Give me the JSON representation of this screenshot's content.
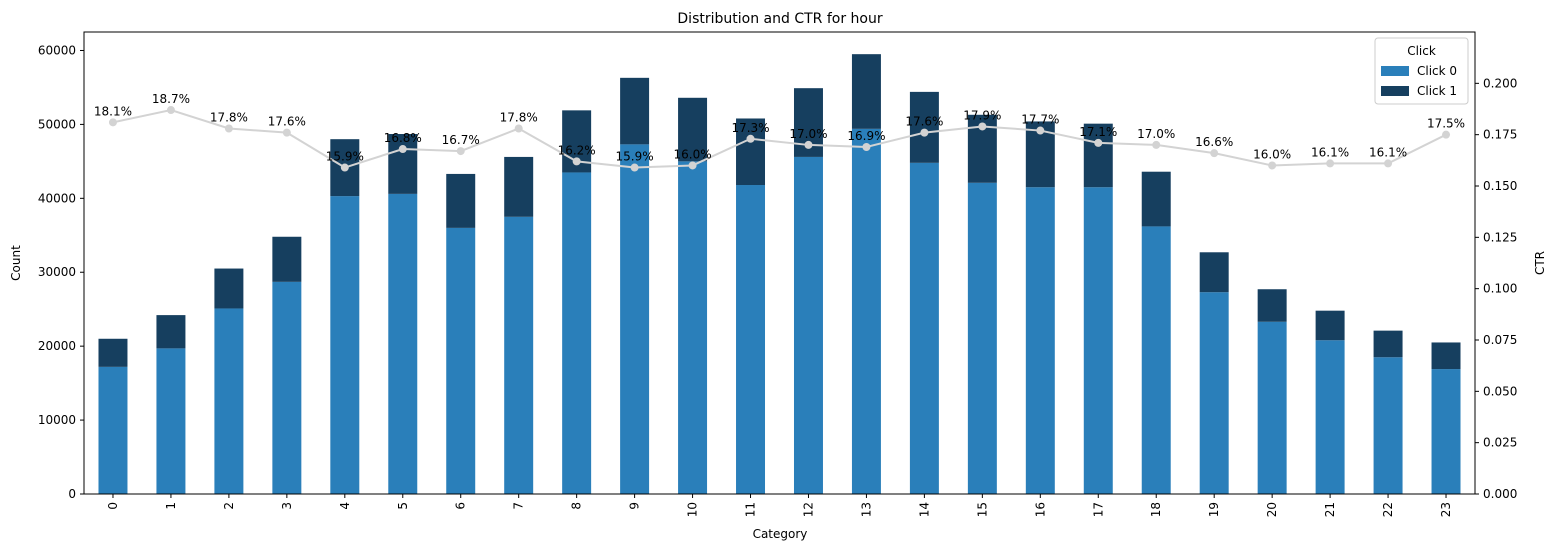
{
  "chart_data": {
    "type": "bar",
    "stacked": true,
    "title": "Distribution and CTR for hour",
    "xlabel": "Category",
    "ylabel": "Count",
    "y2label": "CTR",
    "ylim": [
      0,
      62500
    ],
    "y2lim": [
      0,
      0.225
    ],
    "yticks": [
      0,
      10000,
      20000,
      30000,
      40000,
      50000,
      60000
    ],
    "y2ticks": [
      0.0,
      0.025,
      0.05,
      0.075,
      0.1,
      0.125,
      0.15,
      0.175,
      0.2
    ],
    "categories": [
      "0",
      "1",
      "2",
      "3",
      "4",
      "5",
      "6",
      "7",
      "8",
      "9",
      "10",
      "11",
      "12",
      "13",
      "14",
      "15",
      "16",
      "17",
      "18",
      "19",
      "20",
      "21",
      "22",
      "23"
    ],
    "series": [
      {
        "name": "Click 0",
        "color": "#2a7fba",
        "values": [
          17200,
          19700,
          25100,
          28700,
          40300,
          40600,
          36000,
          37500,
          43500,
          47300,
          45000,
          41800,
          45600,
          49400,
          44800,
          42100,
          41500,
          41500,
          36200,
          27300,
          23300,
          20800,
          18500,
          16900
        ]
      },
      {
        "name": "Click 1",
        "color": "#163f5f",
        "values": [
          3800,
          4500,
          5400,
          6100,
          7700,
          8100,
          7300,
          8100,
          8400,
          9000,
          8600,
          9000,
          9300,
          10100,
          9600,
          9200,
          8900,
          8600,
          7400,
          5400,
          4400,
          4000,
          3600,
          3600
        ]
      }
    ],
    "ctr": {
      "name": "CTR",
      "color": "#d3d3d3",
      "values": [
        0.181,
        0.187,
        0.178,
        0.176,
        0.159,
        0.168,
        0.167,
        0.178,
        0.162,
        0.159,
        0.16,
        0.173,
        0.17,
        0.169,
        0.176,
        0.179,
        0.177,
        0.171,
        0.17,
        0.166,
        0.16,
        0.161,
        0.161,
        0.175
      ],
      "labels": [
        "18.1%",
        "18.7%",
        "17.8%",
        "17.6%",
        "15.9%",
        "16.8%",
        "16.7%",
        "17.8%",
        "16.2%",
        "15.9%",
        "16.0%",
        "17.3%",
        "17.0%",
        "16.9%",
        "17.6%",
        "17.9%",
        "17.7%",
        "17.1%",
        "17.0%",
        "16.6%",
        "16.0%",
        "16.1%",
        "16.1%",
        "17.5%"
      ]
    },
    "legend": {
      "title": "Click",
      "placement": "top-right"
    }
  }
}
